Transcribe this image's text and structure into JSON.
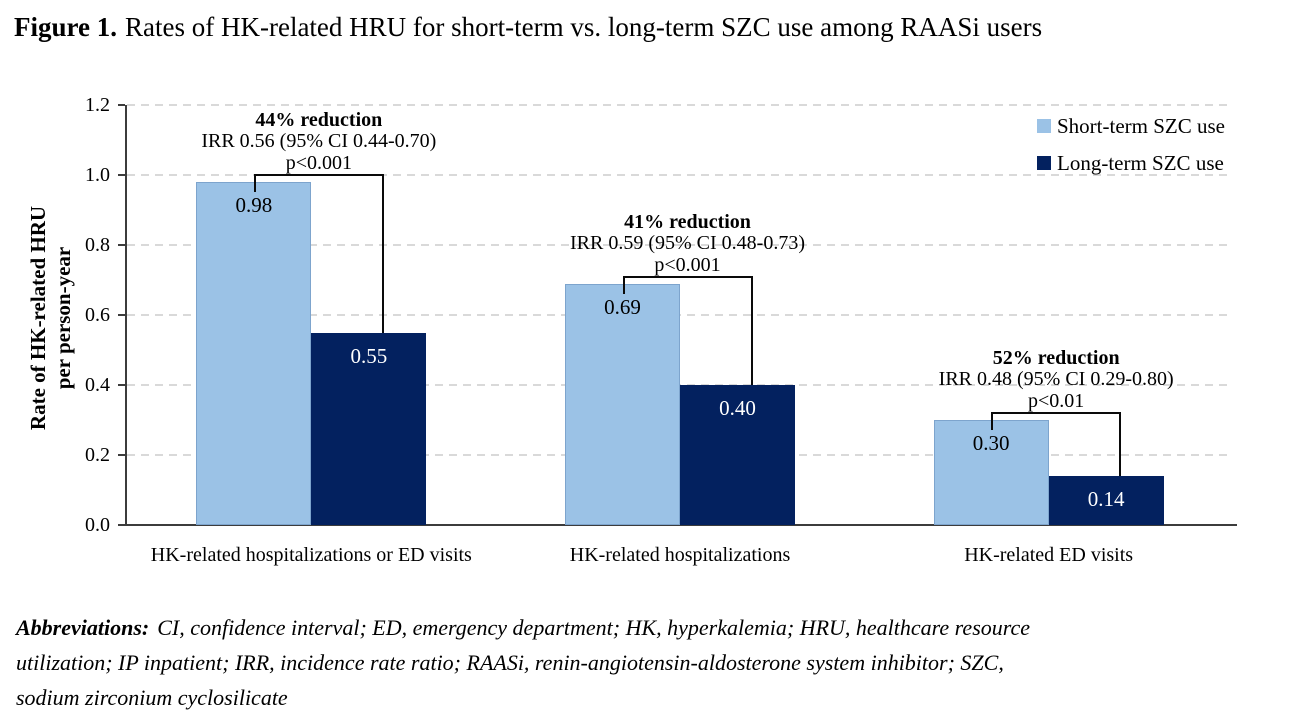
{
  "title": {
    "prefix": "Figure 1.",
    "text": "Rates of HK-related HRU for short-term vs. long-term SZC use among RAASi users"
  },
  "chart_data": {
    "type": "bar",
    "title": "Figure 1. Rates of HK-related HRU for short-term vs. long-term SZC use among RAASi users",
    "categories": [
      "HK-related hospitalizations or ED visits",
      "HK-related hospitalizations",
      "HK-related ED visits"
    ],
    "series": [
      {
        "name": "Short-term SZC use",
        "color": "#9BC2E6",
        "label_color": "#000000",
        "values": [
          0.98,
          0.69,
          0.3
        ],
        "labels": [
          "0.98",
          "0.69",
          "0.30"
        ]
      },
      {
        "name": "Long-term SZC use",
        "color": "#03215F",
        "label_color": "#FFFFFF",
        "values": [
          0.55,
          0.4,
          0.14
        ],
        "labels": [
          "0.55",
          "0.40",
          "0.14"
        ]
      }
    ],
    "annotations": [
      {
        "headline": "44% reduction",
        "detail": "IRR 0.56 (95% CI 0.44-0.70)",
        "pvalue": "p<0.001"
      },
      {
        "headline": "41% reduction",
        "detail": "IRR 0.59 (95% CI 0.48-0.73)",
        "pvalue": "p<0.001"
      },
      {
        "headline": "52% reduction",
        "detail": "IRR 0.48 (95% CI 0.29-0.80)",
        "pvalue": "p<0.01"
      }
    ],
    "xlabel": "",
    "ylabel": [
      "Rate of HK-related HRU",
      "per person-year"
    ],
    "yticks": [
      0.0,
      0.2,
      0.4,
      0.6,
      0.8,
      1.0,
      1.2
    ],
    "ytick_labels": [
      "0.0",
      "0.2",
      "0.4",
      "0.6",
      "0.8",
      "1.0",
      "1.2"
    ],
    "ylim": [
      0,
      1.2
    ],
    "grid": "horizontal-dashed",
    "gridline_color": "#D9D9D9",
    "legend_position": "top-right-inside"
  },
  "footnote": {
    "label": "Abbreviations:",
    "lines": [
      "CI, confidence interval; ED, emergency department; HK, hyperkalemia; HRU, healthcare resource",
      "utilization; IP inpatient; IRR, incidence rate ratio; RAASi, renin-angiotensin-aldosterone system inhibitor; SZC,",
      "sodium zirconium cyclosilicate"
    ]
  }
}
